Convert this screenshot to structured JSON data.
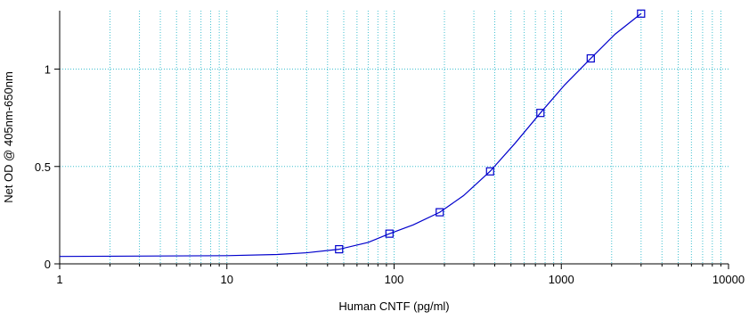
{
  "chart_data": {
    "type": "scatter",
    "title": "",
    "xlabel": "Human CNTF (pg/ml)",
    "ylabel": "Net OD @ 405nm-650nm",
    "x_scale": "log",
    "xlim": [
      1,
      10000
    ],
    "ylim": [
      0,
      1.3
    ],
    "grid": true,
    "x_ticks": [
      {
        "value": 1,
        "label": "1"
      },
      {
        "value": 10,
        "label": "10"
      },
      {
        "value": 100,
        "label": "100"
      },
      {
        "value": 1000,
        "label": "1000"
      },
      {
        "value": 10000,
        "label": "10000"
      }
    ],
    "y_ticks": [
      {
        "value": 0,
        "label": "0"
      },
      {
        "value": 0.5,
        "label": "0.5"
      },
      {
        "value": 1,
        "label": "1"
      }
    ],
    "series": [
      {
        "points": [
          {
            "x": 46.9,
            "y": 0.075
          },
          {
            "x": 93.8,
            "y": 0.155
          },
          {
            "x": 187.5,
            "y": 0.265
          },
          {
            "x": 375,
            "y": 0.475
          },
          {
            "x": 750,
            "y": 0.775
          },
          {
            "x": 1500,
            "y": 1.055
          },
          {
            "x": 3000,
            "y": 1.285
          }
        ]
      }
    ],
    "fit_curve": [
      {
        "x": 1,
        "y": 0.038
      },
      {
        "x": 10,
        "y": 0.042
      },
      {
        "x": 20,
        "y": 0.048
      },
      {
        "x": 30,
        "y": 0.057
      },
      {
        "x": 46.9,
        "y": 0.075
      },
      {
        "x": 70,
        "y": 0.11
      },
      {
        "x": 93.8,
        "y": 0.155
      },
      {
        "x": 130,
        "y": 0.2
      },
      {
        "x": 187.5,
        "y": 0.265
      },
      {
        "x": 260,
        "y": 0.35
      },
      {
        "x": 375,
        "y": 0.475
      },
      {
        "x": 530,
        "y": 0.62
      },
      {
        "x": 750,
        "y": 0.775
      },
      {
        "x": 1050,
        "y": 0.92
      },
      {
        "x": 1500,
        "y": 1.055
      },
      {
        "x": 2100,
        "y": 1.18
      },
      {
        "x": 3000,
        "y": 1.285
      }
    ],
    "colors": {
      "series": "#0000cc",
      "grid": "#40c0d0",
      "axis": "#000000"
    }
  }
}
